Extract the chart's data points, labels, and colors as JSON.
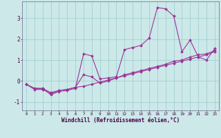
{
  "xlabel": "Windchill (Refroidissement éolien,°C)",
  "bg_color": "#cce8e8",
  "grid_color": "#99cccc",
  "line_color": "#993399",
  "line1_y": [
    -0.15,
    -0.35,
    -0.35,
    -0.55,
    -0.45,
    -0.4,
    -0.3,
    -0.25,
    -0.15,
    -0.05,
    0.05,
    0.15,
    0.25,
    0.35,
    0.45,
    0.55,
    0.65,
    0.75,
    0.85,
    0.95,
    1.05,
    1.15,
    1.25,
    1.4
  ],
  "line2_y": [
    -0.15,
    -0.35,
    -0.35,
    -0.65,
    -0.5,
    -0.45,
    -0.35,
    1.3,
    1.2,
    0.1,
    0.15,
    0.2,
    1.5,
    1.6,
    1.7,
    2.05,
    3.5,
    3.45,
    3.1,
    1.4,
    1.95,
    1.15,
    1.0,
    1.55
  ],
  "line3_y": [
    -0.15,
    -0.4,
    -0.4,
    -0.6,
    -0.45,
    -0.4,
    -0.3,
    0.3,
    0.2,
    -0.1,
    0.0,
    0.15,
    0.3,
    0.4,
    0.5,
    0.6,
    0.7,
    0.8,
    0.95,
    1.0,
    1.15,
    1.25,
    1.3,
    1.45
  ],
  "ylim": [
    -1.4,
    3.8
  ],
  "xlim": [
    -0.5,
    23.5
  ],
  "yticks": [
    -1,
    0,
    1,
    2,
    3
  ],
  "xticks": [
    0,
    1,
    2,
    3,
    4,
    5,
    6,
    7,
    8,
    9,
    10,
    11,
    12,
    13,
    14,
    15,
    16,
    17,
    18,
    19,
    20,
    21,
    22,
    23
  ],
  "xtick_labels": [
    "0",
    "1",
    "2",
    "3",
    "4",
    "5",
    "6",
    "7",
    "8",
    "9",
    "10",
    "11",
    "12",
    "13",
    "14",
    "15",
    "16",
    "17",
    "18",
    "19",
    "20",
    "21",
    "22",
    "23"
  ],
  "marker": "D",
  "markersize": 2.0,
  "linewidth": 0.8
}
